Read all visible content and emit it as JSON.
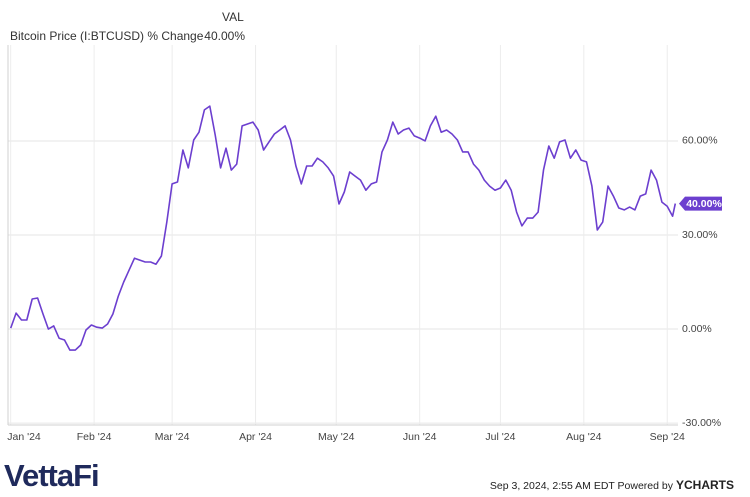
{
  "chart_data": {
    "type": "line",
    "legend": {
      "header": "VAL",
      "value": "40.00%"
    },
    "x": [
      0,
      2,
      4,
      6,
      8,
      10,
      12,
      14,
      16,
      18,
      20,
      22,
      24,
      26,
      28,
      30,
      32,
      34,
      36,
      38,
      40,
      42,
      44,
      46,
      48,
      50,
      52,
      54,
      56,
      58,
      60,
      62,
      64,
      66,
      68,
      70,
      72,
      74,
      76,
      78,
      80,
      82,
      84,
      86,
      88,
      90,
      92,
      94,
      96,
      98,
      100,
      102,
      104,
      106,
      108,
      110,
      112,
      114,
      116,
      118,
      120,
      122,
      124,
      126,
      128,
      130,
      132,
      134,
      136,
      138,
      140,
      142,
      144,
      146,
      148,
      150,
      152,
      154,
      156,
      158,
      160,
      162,
      164,
      166,
      168,
      170,
      172,
      174,
      176,
      178,
      180,
      182,
      184,
      186,
      188,
      190,
      192,
      194,
      196,
      198,
      200,
      202,
      204,
      206,
      208,
      210,
      212,
      214,
      216,
      218,
      220,
      222,
      224,
      226,
      228,
      230,
      232,
      234,
      236,
      238,
      240,
      242,
      244,
      246,
      247
    ],
    "series": [
      {
        "name": "Bitcoin Price (I:BTCUSD) % Change",
        "color": "#6c3fcf",
        "values": [
          0.3,
          5.1,
          2.9,
          2.9,
          9.6,
          9.9,
          4.8,
          0,
          1.0,
          -2.9,
          -3.5,
          -6.7,
          -6.7,
          -5.1,
          -0.3,
          1.3,
          0.6,
          0.3,
          1.6,
          4.8,
          10.5,
          15.0,
          18.8,
          22.6,
          22.0,
          21.4,
          21.4,
          20.7,
          23.3,
          34.1,
          46.3,
          46.9,
          57.1,
          51.4,
          60.3,
          62.8,
          69.9,
          71.1,
          61.9,
          51.4,
          57.7,
          50.7,
          52.6,
          64.8,
          65.4,
          66.0,
          63.5,
          57.1,
          59.7,
          62.2,
          63.5,
          64.8,
          60.3,
          52.0,
          46.3,
          52.0,
          52.0,
          54.5,
          53.3,
          51.4,
          48.8,
          39.9,
          43.7,
          50.1,
          48.8,
          47.5,
          44.3,
          46.3,
          46.9,
          56.5,
          60.3,
          66.0,
          62.2,
          63.5,
          64.1,
          61.6,
          60.9,
          60.0,
          64.8,
          67.9,
          62.8,
          63.5,
          62.2,
          60.3,
          56.5,
          56.5,
          52.6,
          50.7,
          47.5,
          45.6,
          44.3,
          45.0,
          47.5,
          44.3,
          37.3,
          32.9,
          35.4,
          35.4,
          37.3,
          50.7,
          58.4,
          54.5,
          59.7,
          60.3,
          54.5,
          57.1,
          53.9,
          53.3,
          45.6,
          31.6,
          34.1,
          45.6,
          42.4,
          38.6,
          38.0,
          38.9,
          38.0,
          42.4,
          43.1,
          50.7,
          47.5,
          40.5,
          39.2,
          36.0,
          40
        ]
      }
    ],
    "end_label": "40.00%",
    "xlim": [
      -1,
      248
    ],
    "xticks": [
      {
        "value": 0,
        "label": "Jan '24"
      },
      {
        "value": 31,
        "label": "Feb '24"
      },
      {
        "value": 60,
        "label": "Mar '24"
      },
      {
        "value": 91,
        "label": "Apr '24"
      },
      {
        "value": 121,
        "label": "May '24"
      },
      {
        "value": 152,
        "label": "Jun '24"
      },
      {
        "value": 182,
        "label": "Jul '24"
      },
      {
        "value": 213,
        "label": "Aug '24"
      },
      {
        "value": 244,
        "label": "Sep '24"
      }
    ],
    "ylim": [
      -30.6,
      90.6
    ],
    "yticks": [
      {
        "value": 60,
        "label": "60.00%"
      },
      {
        "value": 30,
        "label": "30.00%"
      },
      {
        "value": 0,
        "label": "0.00%"
      },
      {
        "value": -30,
        "label": "-30.00%"
      }
    ],
    "grid": true
  },
  "footer": {
    "brand": "VettaFi",
    "timestamp": "Sep 3, 2024, 2:55 AM EDT Powered by",
    "logo": "YCHARTS"
  }
}
